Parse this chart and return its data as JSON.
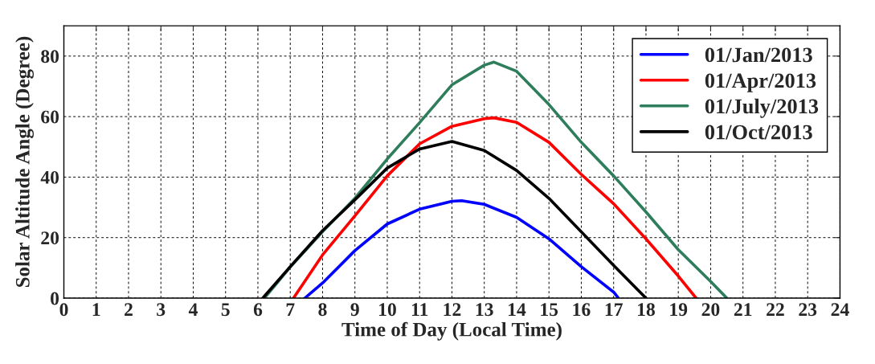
{
  "chart_data": {
    "type": "line",
    "xlabel": "Time of Day (Local Time)",
    "ylabel": "Solar Altitude Angle (Degree)",
    "xlim": [
      0,
      24
    ],
    "xticks": [
      0,
      1,
      2,
      3,
      4,
      5,
      6,
      7,
      8,
      9,
      10,
      11,
      12,
      13,
      14,
      15,
      16,
      17,
      18,
      19,
      20,
      21,
      22,
      23,
      24
    ],
    "ylim": [
      0,
      90
    ],
    "yticks": [
      0,
      20,
      40,
      60,
      80
    ],
    "grid": true,
    "legend": "top right",
    "line_style": "solid",
    "marker": "none",
    "series": [
      {
        "name": "01/Jan/2013",
        "color": "#0000ff",
        "x": [
          7.45,
          8,
          9,
          10,
          11,
          12,
          12.3,
          13,
          14,
          15,
          16,
          17,
          17.15
        ],
        "values": [
          0,
          5,
          15.7,
          24.5,
          29.4,
          32,
          32.2,
          31,
          26.7,
          19.6,
          10.4,
          2,
          0
        ]
      },
      {
        "name": "01/Apr/2013",
        "color": "#ff0000",
        "x": [
          7.1,
          8,
          9,
          10,
          11,
          12,
          13,
          13.3,
          14,
          15,
          16,
          17,
          18,
          19,
          19.55
        ],
        "values": [
          0,
          14.3,
          27.2,
          40.4,
          51,
          56.8,
          59.3,
          59.6,
          58.1,
          51.5,
          40.9,
          31.2,
          19.6,
          7.3,
          0
        ]
      },
      {
        "name": "01/July/2013",
        "color": "#2e7d5b",
        "x": [
          6.2,
          7,
          8,
          9,
          10,
          11,
          12,
          13,
          13.3,
          14,
          15,
          16,
          17,
          18,
          19,
          20,
          20.5
        ],
        "values": [
          0,
          10.3,
          22,
          33,
          46,
          58,
          70.5,
          77,
          78,
          75,
          64,
          51.5,
          40.4,
          28.5,
          16,
          5.5,
          0
        ]
      },
      {
        "name": "01/Oct/2013",
        "color": "#000000",
        "x": [
          6.15,
          7,
          8,
          9,
          10,
          11,
          12,
          13,
          14,
          15,
          16,
          17,
          18
        ],
        "values": [
          0,
          10.4,
          22.3,
          32.5,
          43,
          49.3,
          51.8,
          48.8,
          42.2,
          33,
          21.9,
          10.8,
          0
        ]
      }
    ]
  }
}
